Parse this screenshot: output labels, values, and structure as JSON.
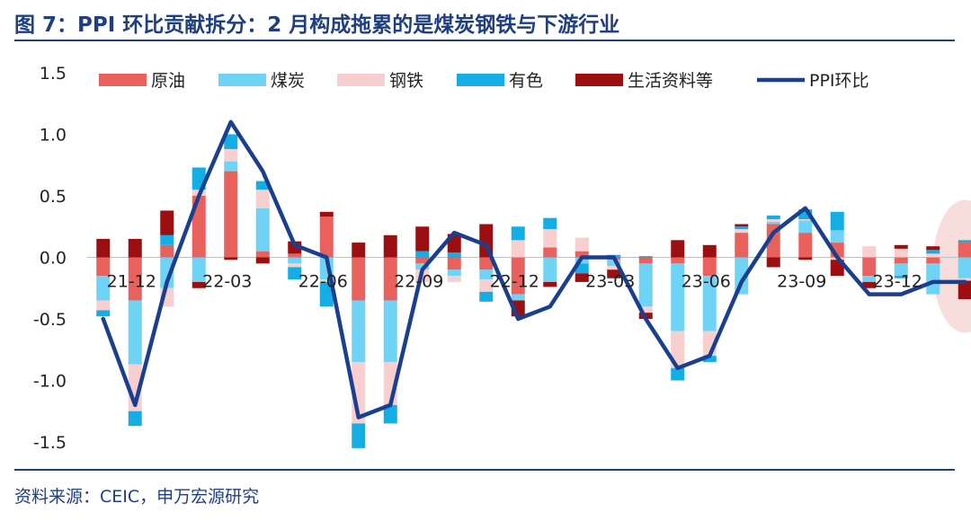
{
  "title": "图 7：PPI 环比贡献拆分：2 月构成拖累的是煤炭钢铁与下游行业",
  "source": "资料来源：CEIC，申万宏源研究",
  "colors": {
    "title": "#1f3f7f",
    "原油": "#e8615c",
    "煤炭": "#6fd3f5",
    "钢铁": "#f7cfcf",
    "有色": "#14aee4",
    "生活资料等": "#9b0f10",
    "PPI环比": "#1a3f8f",
    "highlight": "#f4d3d1"
  },
  "chart_data": {
    "type": "bar",
    "stacked": true,
    "ylim": [
      -1.5,
      1.5
    ],
    "yticks": [
      -1.5,
      -1.0,
      -0.5,
      0.0,
      0.5,
      1.0,
      1.5
    ],
    "ytick_labels": [
      "-1.5",
      "-1.0",
      "-0.5",
      "0.0",
      "0.5",
      "1.0",
      "1.5"
    ],
    "xtick_labels": [
      {
        "label": "21-12",
        "index": 1
      },
      {
        "label": "22-03",
        "index": 4
      },
      {
        "label": "22-06",
        "index": 7
      },
      {
        "label": "22-09",
        "index": 10
      },
      {
        "label": "22-12",
        "index": 13
      },
      {
        "label": "23-03",
        "index": 16
      },
      {
        "label": "23-06",
        "index": 19
      },
      {
        "label": "23-09",
        "index": 22
      },
      {
        "label": "23-12",
        "index": 25
      }
    ],
    "categories": [
      "21-11",
      "21-12",
      "22-01",
      "22-02",
      "22-03",
      "22-04",
      "22-05",
      "22-06",
      "22-07",
      "22-08",
      "22-09",
      "22-10",
      "22-11",
      "22-12",
      "23-01",
      "23-02",
      "23-03",
      "23-04",
      "23-05",
      "23-06",
      "23-07",
      "23-08",
      "23-09",
      "23-10",
      "23-11",
      "23-12",
      "24-01",
      "24-02"
    ],
    "series": [
      {
        "name": "原油",
        "values": [
          -0.15,
          -0.35,
          0.1,
          0.5,
          0.7,
          0.05,
          0.03,
          0.33,
          -0.35,
          -0.35,
          -0.05,
          -0.1,
          -0.1,
          -0.3,
          0.08,
          0.05,
          -0.02,
          -0.05,
          -0.05,
          -0.15,
          0.2,
          0.27,
          0.2,
          0.12,
          -0.15,
          -0.05,
          -0.05,
          0.12
        ]
      },
      {
        "name": "煤炭",
        "values": [
          -0.2,
          -0.52,
          -0.25,
          -0.2,
          0.08,
          0.35,
          -0.05,
          -0.18,
          -0.5,
          -0.5,
          -0.05,
          -0.05,
          -0.08,
          -0.05,
          -0.2,
          -0.05,
          -0.05,
          -0.35,
          -0.55,
          -0.45,
          -0.3,
          0.02,
          0.1,
          0.1,
          -0.05,
          -0.1,
          -0.25,
          -0.17
        ]
      },
      {
        "name": "钢铁",
        "values": [
          -0.08,
          -0.38,
          -0.15,
          0.05,
          0.1,
          0.15,
          -0.03,
          -0.02,
          -0.5,
          -0.35,
          -0.1,
          -0.05,
          -0.1,
          0.14,
          0.15,
          0.11,
          -0.03,
          -0.05,
          -0.3,
          -0.2,
          0.03,
          0.02,
          0.01,
          -0.02,
          0.09,
          0.07,
          0.03,
          -0.02
        ]
      },
      {
        "name": "有色",
        "values": [
          -0.05,
          -0.12,
          0.08,
          0.18,
          0.12,
          0.07,
          -0.1,
          -0.2,
          -0.2,
          -0.15,
          0.05,
          0.04,
          -0.08,
          0.11,
          0.09,
          -0.08,
          0.02,
          0.01,
          -0.1,
          -0.05,
          0.02,
          0.03,
          0.08,
          0.15,
          0.0,
          -0.02,
          0.03,
          0.02
        ]
      },
      {
        "name": "生活资料等",
        "values": [
          0.15,
          0.15,
          0.2,
          -0.05,
          -0.02,
          -0.05,
          0.1,
          0.04,
          0.12,
          0.18,
          0.2,
          0.15,
          0.27,
          -0.13,
          -0.04,
          -0.07,
          -0.07,
          -0.05,
          0.14,
          0.1,
          0.02,
          -0.08,
          -0.02,
          -0.13,
          -0.05,
          0.03,
          0.03,
          -0.15
        ]
      }
    ],
    "line": {
      "name": "PPI环比",
      "values": [
        -0.5,
        -1.2,
        -0.2,
        0.5,
        1.1,
        0.7,
        0.1,
        0.0,
        -1.3,
        -1.2,
        -0.1,
        0.2,
        0.1,
        -0.5,
        -0.4,
        0.0,
        0.0,
        -0.5,
        -0.9,
        -0.8,
        -0.2,
        0.2,
        0.4,
        0.0,
        -0.3,
        -0.3,
        -0.2,
        -0.2
      ]
    },
    "highlight_index": 27,
    "legend": [
      "原油",
      "煤炭",
      "钢铁",
      "有色",
      "生活资料等",
      "PPI环比"
    ],
    "legend_position": "top"
  }
}
